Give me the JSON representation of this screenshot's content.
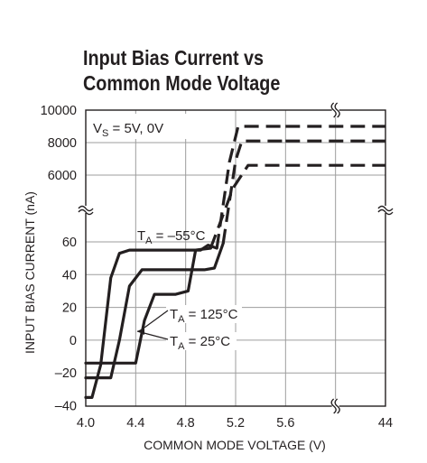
{
  "title_line1": "Input Bias Current vs",
  "title_line2": "Common Mode Voltage",
  "chart_data": {
    "type": "line",
    "title": "Input Bias Current vs Common Mode Voltage",
    "xlabel": "COMMON MODE VOLTAGE (V)",
    "ylabel": "INPUT BIAS CURRENT (nA)",
    "x_ticks": [
      "4.0",
      "4.4",
      "4.8",
      "5.2",
      "5.6",
      "44"
    ],
    "y_ticks_upper": [
      "10000",
      "8000",
      "6000"
    ],
    "y_ticks_lower": [
      "60",
      "40",
      "20",
      "0",
      "–20",
      "–40"
    ],
    "axis_break": "broken y-axis between 60 nA and 6000 nA; broken x-axis between 5.6 V and 44 V",
    "supply_label": "V",
    "supply_label_sub": "S",
    "supply_label_rest": " = 5V, 0V",
    "grid": true,
    "annotations": [
      {
        "main": "T",
        "sub": "A",
        "rest": " = –55°C"
      },
      {
        "main": "T",
        "sub": "A",
        "rest": " = 125°C"
      },
      {
        "main": "T",
        "sub": "A",
        "rest": " = 25°C"
      }
    ],
    "series": [
      {
        "name": "T_A = –55°C",
        "points": [
          [
            4.0,
            -35
          ],
          [
            4.05,
            -35
          ],
          [
            4.12,
            -15
          ],
          [
            4.2,
            38
          ],
          [
            4.27,
            53
          ],
          [
            4.35,
            55
          ],
          [
            4.8,
            55
          ],
          [
            4.92,
            55
          ],
          [
            4.98,
            58
          ],
          [
            5.05,
            1500
          ],
          [
            5.15,
            6800
          ],
          [
            5.22,
            9000
          ],
          [
            5.6,
            9000
          ],
          [
            44,
            9000
          ]
        ],
        "dashed_from_x": 5.05
      },
      {
        "name": "T_A = 25°C",
        "points": [
          [
            4.0,
            -23
          ],
          [
            4.2,
            -23
          ],
          [
            4.27,
            0
          ],
          [
            4.35,
            33
          ],
          [
            4.45,
            43
          ],
          [
            4.95,
            43
          ],
          [
            5.03,
            44
          ],
          [
            5.1,
            1800
          ],
          [
            5.2,
            6900
          ],
          [
            5.25,
            8100
          ],
          [
            5.6,
            8100
          ],
          [
            44,
            8100
          ]
        ],
        "dashed_from_x": 5.1
      },
      {
        "name": "T_A = 125°C",
        "points": [
          [
            4.0,
            -14
          ],
          [
            4.4,
            -14
          ],
          [
            4.47,
            12
          ],
          [
            4.55,
            28
          ],
          [
            4.72,
            28
          ],
          [
            4.82,
            30
          ],
          [
            4.88,
            55
          ],
          [
            5.0,
            1500
          ],
          [
            5.18,
            5200
          ],
          [
            5.3,
            6600
          ],
          [
            5.6,
            6600
          ],
          [
            44,
            6600
          ]
        ],
        "dashed_from_x": 5.0
      }
    ]
  }
}
